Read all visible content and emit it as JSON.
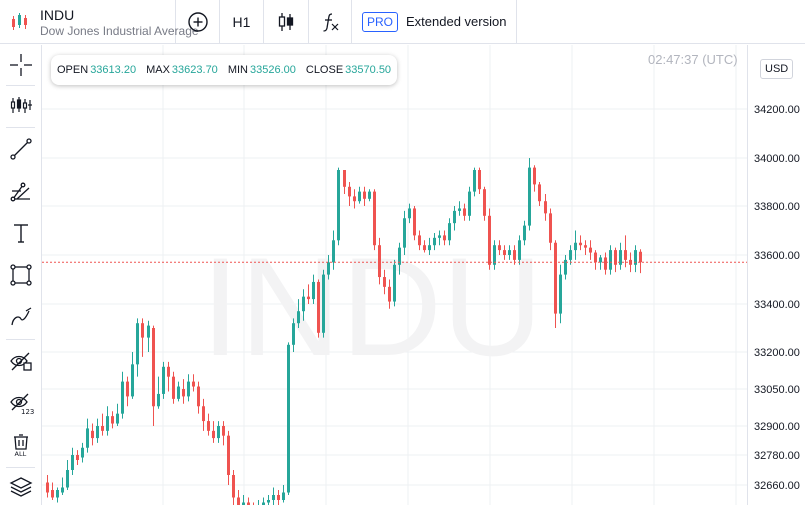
{
  "symbol": {
    "ticker": "INDU",
    "name": "Dow Jones Industrial Average"
  },
  "toolbar": {
    "timeframe": "H1",
    "pro_label": "PRO",
    "extended_label": "Extended version"
  },
  "icons": {
    "logo": "candles-logo-icon",
    "add": "add-compare-icon",
    "chart_type": "candle-type-icon",
    "indicators": "fx-icon"
  },
  "left_tools": [
    "crosshair-icon",
    "indicators-tool-icon",
    "trend-line-icon",
    "fib-tool-icon",
    "text-tool-icon",
    "shape-tool-icon",
    "brush-tool-icon",
    "hide-drawings-icon",
    "hide-indicators-icon",
    "delete-all-icon",
    "layers-icon"
  ],
  "ohlc": {
    "open_label": "OPEN",
    "open": "33613.20",
    "max_label": "MAX",
    "max": "33623.70",
    "min_label": "MIN",
    "min": "33526.00",
    "close_label": "CLOSE",
    "close": "33570.50"
  },
  "clock": "02:47:37 (UTC)",
  "currency": "USD",
  "watermark": "INDU",
  "colors": {
    "up": "#26a69a",
    "down": "#ef5350",
    "accent": "#2962ff",
    "last_price": "#ef5350"
  },
  "chart_data": {
    "type": "candlestick",
    "price_ticks": [
      "34200.00",
      "34000.00",
      "33800.00",
      "33600.00",
      "33400.00",
      "33200.00",
      "33050.00",
      "32900.00",
      "32780.00",
      "32660.00"
    ],
    "last_price": 33570.5,
    "candles": [
      [
        32670,
        32630,
        32700,
        32610
      ],
      [
        32640,
        32610,
        32670,
        32600
      ],
      [
        32610,
        32640,
        32650,
        32590
      ],
      [
        32630,
        32650,
        32690,
        32620
      ],
      [
        32650,
        32720,
        32760,
        32640
      ],
      [
        32720,
        32780,
        32810,
        32700
      ],
      [
        32780,
        32760,
        32800,
        32740
      ],
      [
        32770,
        32810,
        32830,
        32750
      ],
      [
        32810,
        32890,
        32930,
        32790
      ],
      [
        32880,
        32850,
        32910,
        32820
      ],
      [
        32850,
        32900,
        32930,
        32830
      ],
      [
        32900,
        32880,
        32950,
        32860
      ],
      [
        32880,
        32940,
        32980,
        32860
      ],
      [
        32940,
        32910,
        32960,
        32890
      ],
      [
        32910,
        32950,
        32990,
        32900
      ],
      [
        32950,
        33080,
        33120,
        32930
      ],
      [
        33080,
        33020,
        33100,
        32980
      ],
      [
        33020,
        33150,
        33200,
        33010
      ],
      [
        33150,
        33320,
        33340,
        33100
      ],
      [
        33320,
        33260,
        33340,
        33180
      ],
      [
        33260,
        33310,
        33330,
        33200
      ],
      [
        33300,
        32980,
        33310,
        32900
      ],
      [
        32980,
        33030,
        33100,
        32970
      ],
      [
        33030,
        33140,
        33160,
        33010
      ],
      [
        33140,
        33100,
        33160,
        33040
      ],
      [
        33100,
        33010,
        33120,
        32990
      ],
      [
        33010,
        33060,
        33080,
        33000
      ],
      [
        33050,
        33020,
        33090,
        32990
      ],
      [
        33020,
        33080,
        33110,
        33000
      ],
      [
        33080,
        33060,
        33110,
        33040
      ],
      [
        33060,
        32980,
        33080,
        32950
      ],
      [
        32980,
        32920,
        33010,
        32880
      ],
      [
        32920,
        32880,
        32950,
        32860
      ],
      [
        32880,
        32850,
        32920,
        32830
      ],
      [
        32850,
        32900,
        32920,
        32830
      ],
      [
        32900,
        32860,
        32920,
        32820
      ],
      [
        32860,
        32700,
        32880,
        32660
      ],
      [
        32700,
        32610,
        32720,
        32560
      ],
      [
        32610,
        32560,
        32640,
        32540
      ],
      [
        32560,
        32590,
        32620,
        32540
      ],
      [
        32590,
        32570,
        32610,
        32560
      ],
      [
        32570,
        32560,
        32590,
        32550
      ],
      [
        32560,
        32580,
        32600,
        32550
      ],
      [
        32580,
        32590,
        32610,
        32560
      ],
      [
        32590,
        32600,
        32620,
        32570
      ],
      [
        32600,
        32620,
        32650,
        32580
      ],
      [
        32620,
        32600,
        32640,
        32560
      ],
      [
        32600,
        32630,
        32660,
        32590
      ],
      [
        32630,
        33230,
        33240,
        32620
      ],
      [
        33230,
        33320,
        33340,
        33200
      ],
      [
        33320,
        33370,
        33420,
        33300
      ],
      [
        33370,
        33430,
        33460,
        33330
      ],
      [
        33430,
        33420,
        33480,
        33400
      ],
      [
        33420,
        33490,
        33520,
        33400
      ],
      [
        33490,
        33280,
        33500,
        33260
      ],
      [
        33280,
        33520,
        33540,
        33260
      ],
      [
        33520,
        33570,
        33600,
        33500
      ],
      [
        33570,
        33660,
        33700,
        33540
      ],
      [
        33660,
        33950,
        33960,
        33640
      ],
      [
        33950,
        33880,
        33950,
        33850
      ],
      [
        33880,
        33840,
        33900,
        33800
      ],
      [
        33840,
        33820,
        33870,
        33790
      ],
      [
        33820,
        33860,
        33880,
        33810
      ],
      [
        33860,
        33830,
        33880,
        33800
      ],
      [
        33830,
        33860,
        33870,
        33820
      ],
      [
        33860,
        33640,
        33870,
        33620
      ],
      [
        33640,
        33510,
        33670,
        33480
      ],
      [
        33510,
        33470,
        33540,
        33440
      ],
      [
        33470,
        33410,
        33500,
        33380
      ],
      [
        33410,
        33560,
        33580,
        33390
      ],
      [
        33560,
        33630,
        33650,
        33520
      ],
      [
        33630,
        33750,
        33780,
        33600
      ],
      [
        33750,
        33790,
        33810,
        33730
      ],
      [
        33790,
        33680,
        33800,
        33660
      ],
      [
        33680,
        33640,
        33700,
        33620
      ],
      [
        33640,
        33620,
        33660,
        33610
      ],
      [
        33620,
        33640,
        33670,
        33600
      ],
      [
        33640,
        33670,
        33690,
        33620
      ],
      [
        33670,
        33680,
        33700,
        33640
      ],
      [
        33680,
        33660,
        33700,
        33640
      ],
      [
        33660,
        33730,
        33750,
        33640
      ],
      [
        33730,
        33780,
        33800,
        33700
      ],
      [
        33780,
        33790,
        33820,
        33760
      ],
      [
        33790,
        33760,
        33810,
        33740
      ],
      [
        33760,
        33860,
        33880,
        33740
      ],
      [
        33860,
        33950,
        33960,
        33840
      ],
      [
        33950,
        33870,
        33960,
        33850
      ],
      [
        33870,
        33760,
        33880,
        33740
      ],
      [
        33760,
        33560,
        33790,
        33540
      ],
      [
        33560,
        33640,
        33660,
        33540
      ],
      [
        33640,
        33620,
        33660,
        33600
      ],
      [
        33620,
        33600,
        33640,
        33580
      ],
      [
        33600,
        33620,
        33640,
        33580
      ],
      [
        33620,
        33580,
        33640,
        33560
      ],
      [
        33580,
        33660,
        33680,
        33560
      ],
      [
        33660,
        33720,
        33740,
        33640
      ],
      [
        33720,
        33960,
        34000,
        33700
      ],
      [
        33960,
        33890,
        33970,
        33860
      ],
      [
        33890,
        33820,
        33900,
        33800
      ],
      [
        33820,
        33770,
        33850,
        33740
      ],
      [
        33770,
        33650,
        33790,
        33620
      ],
      [
        33650,
        33360,
        33660,
        33300
      ],
      [
        33360,
        33520,
        33560,
        33320
      ],
      [
        33520,
        33580,
        33600,
        33500
      ],
      [
        33580,
        33620,
        33640,
        33560
      ],
      [
        33620,
        33650,
        33700,
        33580
      ],
      [
        33650,
        33640,
        33680,
        33620
      ],
      [
        33640,
        33630,
        33660,
        33600
      ],
      [
        33630,
        33610,
        33660,
        33580
      ],
      [
        33610,
        33570,
        33620,
        33540
      ],
      [
        33570,
        33590,
        33600,
        33540
      ],
      [
        33590,
        33540,
        33610,
        33520
      ],
      [
        33540,
        33620,
        33640,
        33520
      ],
      [
        33620,
        33560,
        33630,
        33530
      ],
      [
        33560,
        33620,
        33650,
        33540
      ],
      [
        33620,
        33580,
        33680,
        33550
      ],
      [
        33580,
        33560,
        33610,
        33530
      ],
      [
        33560,
        33620,
        33640,
        33530
      ],
      [
        33613.2,
        33570.5,
        33623.7,
        33526
      ]
    ]
  }
}
